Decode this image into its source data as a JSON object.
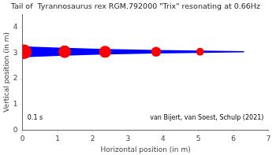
{
  "chart_data": {
    "type": "scatter",
    "title": "Tail of  Tyrannosaurus rex RGM.792000 \"Trix\" resonating at 0.66Hz",
    "xlabel": "Horizontal position (in m)",
    "ylabel": "Vertical position (in m)",
    "xlim": [
      0,
      7
    ],
    "ylim": [
      0,
      4.5
    ],
    "xticks": [
      0,
      1,
      2,
      3,
      4,
      5,
      6,
      7
    ],
    "yticks": [
      0,
      1,
      2,
      3,
      4
    ],
    "grid": false,
    "annotations": [
      "0.1 s",
      "van Bijert, van Soest, Schulp (2021)"
    ],
    "series": [
      {
        "type": "polygon",
        "color": "#0000FF",
        "polygons": [
          [
            [
              0.05,
              2.84
            ],
            [
              0.05,
              3.26
            ],
            [
              1.2,
              3.2
            ],
            [
              1.2,
              2.9
            ]
          ],
          [
            [
              1.2,
              2.9
            ],
            [
              1.2,
              3.2
            ],
            [
              2.35,
              3.16
            ],
            [
              2.35,
              2.94
            ]
          ],
          [
            [
              2.35,
              2.94
            ],
            [
              2.35,
              3.16
            ],
            [
              3.8,
              3.12
            ],
            [
              3.8,
              2.98
            ]
          ],
          [
            [
              3.8,
              2.98
            ],
            [
              3.8,
              3.12
            ],
            [
              5.05,
              3.095
            ],
            [
              5.05,
              3.005
            ]
          ],
          [
            [
              5.05,
              3.005
            ],
            [
              5.05,
              3.095
            ],
            [
              6.3,
              3.075
            ],
            [
              6.3,
              3.025
            ]
          ]
        ]
      },
      {
        "type": "scatter",
        "color": "#FF0000",
        "x": [
          0.05,
          1.2,
          2.35,
          3.8,
          5.05
        ],
        "values": [
          3.05,
          3.05,
          3.05,
          3.05,
          3.05
        ],
        "sizes": [
          180,
          130,
          120,
          80,
          50
        ]
      }
    ]
  }
}
